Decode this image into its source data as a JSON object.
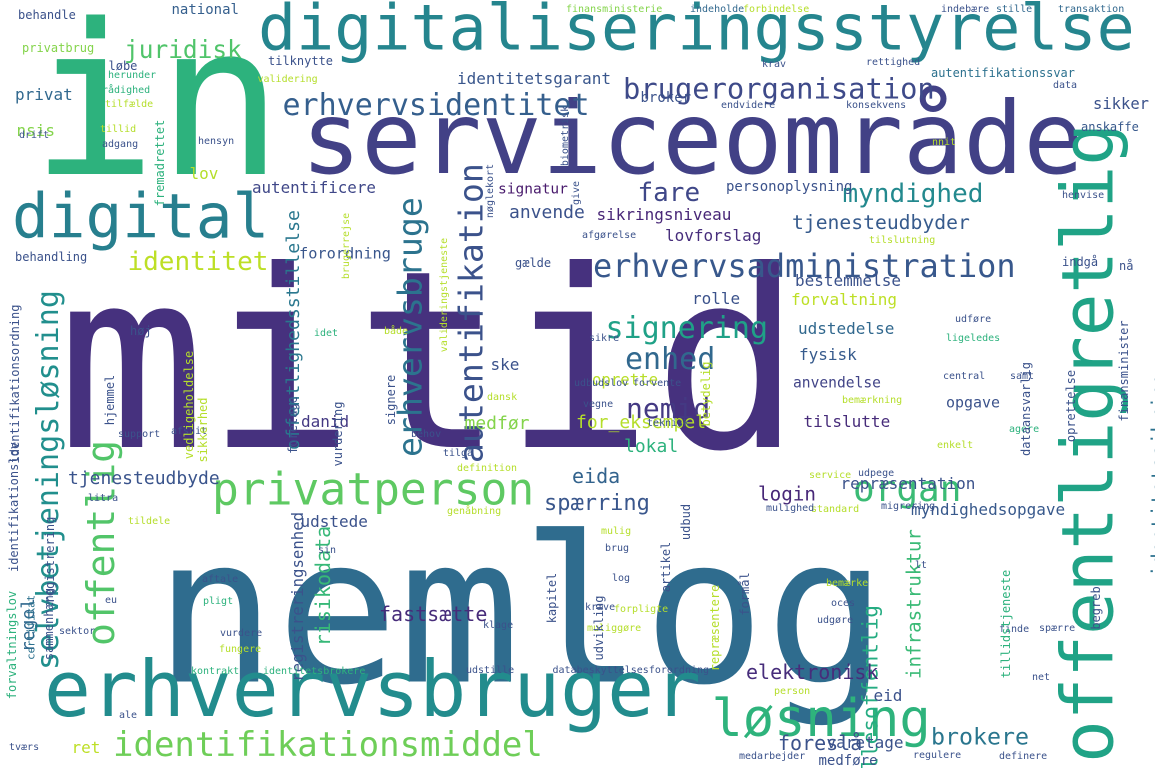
{
  "words": [
    {
      "t": "mitid",
      "c": "#46317e"
    },
    {
      "t": "nemlog",
      "c": "#2f6c8e"
    },
    {
      "t": "in",
      "c": "#2db27d"
    },
    {
      "t": "serviceområde",
      "c": "#424186"
    },
    {
      "t": "digitaliseringsstyrelse",
      "c": "#25858e"
    },
    {
      "t": "erhvervsbruger",
      "c": "#228c8d"
    },
    {
      "t": "offentligretlig",
      "c": "#20a386"
    },
    {
      "t": "digital",
      "c": "#277f8e"
    },
    {
      "t": "løsning",
      "c": "#2eb37c"
    },
    {
      "t": "privatperson",
      "c": "#5ec962"
    },
    {
      "t": "identifikationsmiddel",
      "c": "#6ece58"
    },
    {
      "t": "erhvervsadministration",
      "c": "#38588c"
    },
    {
      "t": "brugerorganisation",
      "c": "#3e4a89"
    },
    {
      "t": "selvbetjeningsløsning",
      "c": "#218f8d"
    },
    {
      "t": "autentifikation",
      "c": "#3b528b"
    },
    {
      "t": "organ",
      "c": "#3bbb75"
    },
    {
      "t": "offentlig",
      "c": "#52c569"
    },
    {
      "t": "erhvervsbruge",
      "c": "#2c738e"
    },
    {
      "t": "signering",
      "c": "#1fa187"
    },
    {
      "t": "erhvervsidentitet",
      "c": "#355f8d"
    },
    {
      "t": "juridisk",
      "c": "#50c46a"
    },
    {
      "t": "identitet",
      "c": "#bddf26"
    },
    {
      "t": "enhed",
      "c": "#31688e"
    },
    {
      "t": "nemid",
      "c": "#443983"
    },
    {
      "t": "fare",
      "c": "#3f4788"
    },
    {
      "t": "myndighed",
      "c": "#23898e"
    },
    {
      "t": "brokere",
      "c": "#2a768e"
    },
    {
      "t": "offentlighedsstillelse",
      "c": "#2a778e"
    },
    {
      "t": "tjenesteudbyder",
      "c": "#375b8d"
    },
    {
      "t": "identitetssikring",
      "c": "#2c718e"
    },
    {
      "t": "infrastruktur",
      "c": "#3aba76"
    },
    {
      "t": "fællesoffentlig",
      "c": "#25ac82"
    },
    {
      "t": "registreringsenhed",
      "c": "#3b528b"
    },
    {
      "t": "risikodata",
      "c": "#37b878"
    },
    {
      "t": "spærring",
      "c": "#39568c"
    },
    {
      "t": "eida",
      "c": "#33638d"
    },
    {
      "t": "login",
      "c": "#482878"
    },
    {
      "t": "elektronisk",
      "c": "#472d7b"
    },
    {
      "t": "foreslå",
      "c": "#3b528b"
    },
    {
      "t": "fastsætte",
      "c": "#472c7a"
    },
    {
      "t": "identitetsgarant",
      "c": "#39568c"
    },
    {
      "t": "autentifikationssvar",
      "c": "#2c718e"
    },
    {
      "t": "anvende",
      "c": "#3b528b"
    },
    {
      "t": "sikringsniveau",
      "c": "#482677"
    },
    {
      "t": "lovforslag",
      "c": "#472e7c"
    },
    {
      "t": "forordning",
      "c": "#39568c"
    },
    {
      "t": "autentificere",
      "c": "#3f4788"
    },
    {
      "t": "personoplysning",
      "c": "#3b528b"
    },
    {
      "t": "signatur",
      "c": "#481a6c"
    },
    {
      "t": "tjenesteudbyde",
      "c": "#3a548c"
    },
    {
      "t": "medfør",
      "c": "#84d44b"
    },
    {
      "t": "lokal",
      "c": "#2db27d"
    },
    {
      "t": "for_eksempel",
      "c": "#b5de2b"
    },
    {
      "t": "oprette",
      "c": "#b8de29"
    },
    {
      "t": "bestemmelse",
      "c": "#3b528b"
    },
    {
      "t": "forvaltning",
      "c": "#bddf26"
    },
    {
      "t": "udstedelse",
      "c": "#31688e"
    },
    {
      "t": "fysisk",
      "c": "#375b8d"
    },
    {
      "t": "anvendelse",
      "c": "#414487"
    },
    {
      "t": "opgave",
      "c": "#3b528b"
    },
    {
      "t": "tilslutte",
      "c": "#472c7a"
    },
    {
      "t": "repræsentation",
      "c": "#3b528b"
    },
    {
      "t": "myndighedsopgave",
      "c": "#38598c"
    },
    {
      "t": "udstede",
      "c": "#3b528b"
    },
    {
      "t": "varetage",
      "c": "#3b528b"
    },
    {
      "t": "eid",
      "c": "#3b528b"
    },
    {
      "t": "medføre",
      "c": "#3b528b"
    },
    {
      "t": "rolle",
      "c": "#3b528b"
    },
    {
      "t": "danid",
      "c": "#443983"
    },
    {
      "t": "ske",
      "c": "#3b528b"
    },
    {
      "t": "regel",
      "c": "#31688e"
    },
    {
      "t": "certifikat",
      "c": "#2c718e"
    },
    {
      "t": "ret",
      "c": "#bddf26"
    },
    {
      "t": "privat",
      "c": "#31688e"
    },
    {
      "t": "nsis",
      "c": "#84d44b"
    },
    {
      "t": "lov",
      "c": "#b5de2b"
    },
    {
      "t": "broker",
      "c": "#3b528b"
    },
    {
      "t": "sikker",
      "c": "#3b528b"
    },
    {
      "t": "anskaffe",
      "c": "#38598c"
    },
    {
      "t": "national",
      "c": "#355f8d"
    },
    {
      "t": "behandle",
      "c": "#3b528b"
    },
    {
      "t": "privatbrug",
      "c": "#84d44b"
    },
    {
      "t": "løbe",
      "c": "#3b528b"
    },
    {
      "t": "tilknytte",
      "c": "#3b528b"
    },
    {
      "t": "validering",
      "c": "#b5de2b"
    },
    {
      "t": "krav",
      "c": "#3b528b"
    },
    {
      "t": "rettighed",
      "c": "#3b528b"
    },
    {
      "t": "finansministerie",
      "c": "#84d44b"
    },
    {
      "t": "indeholde",
      "c": "#31688e"
    },
    {
      "t": "forbindelse",
      "c": "#b5de2b"
    },
    {
      "t": "indebære",
      "c": "#3b528b"
    },
    {
      "t": "stille",
      "c": "#31688e"
    },
    {
      "t": "transaktion",
      "c": "#31688e"
    },
    {
      "t": "herunder",
      "c": "#2db27d"
    },
    {
      "t": "rådighed",
      "c": "#2db27d"
    },
    {
      "t": "tilfælde",
      "c": "#b5de2b"
    },
    {
      "t": "tillid",
      "c": "#b5de2b"
    },
    {
      "t": "adgang",
      "c": "#3b528b"
    },
    {
      "t": "drift",
      "c": "#3b528b"
    },
    {
      "t": "hensyn",
      "c": "#3b528b"
    },
    {
      "t": "endvidere",
      "c": "#3b528b"
    },
    {
      "t": "konsekvens",
      "c": "#3b528b"
    },
    {
      "t": "data",
      "c": "#3b528b"
    },
    {
      "t": "nnit",
      "c": "#b5de2b"
    },
    {
      "t": "henvise",
      "c": "#3b528b"
    },
    {
      "t": "tilslutning",
      "c": "#b5de2b"
    },
    {
      "t": "behandling",
      "c": "#3b528b"
    },
    {
      "t": "gælde",
      "c": "#3b528b"
    },
    {
      "t": "afgørelse",
      "c": "#3b528b"
    },
    {
      "t": "indgå",
      "c": "#3b528b"
    },
    {
      "t": "nå",
      "c": "#3b528b"
    },
    {
      "t": "høj",
      "c": "#3b528b"
    },
    {
      "t": "idet",
      "c": "#2db27d"
    },
    {
      "t": "både",
      "c": "#b5de2b"
    },
    {
      "t": "sikre",
      "c": "#3b528b"
    },
    {
      "t": "udføre",
      "c": "#3b528b"
    },
    {
      "t": "ligeledes",
      "c": "#2db27d"
    },
    {
      "t": "samt",
      "c": "#3b528b"
    },
    {
      "t": "central",
      "c": "#3b528b"
    },
    {
      "t": "forvente",
      "c": "#3b528b"
    },
    {
      "t": "udbudslov",
      "c": "#3b528b"
    },
    {
      "t": "dansk",
      "c": "#b5de2b"
    },
    {
      "t": "vegne",
      "c": "#3b528b"
    },
    {
      "t": "bemærkning",
      "c": "#b5de2b"
    },
    {
      "t": "support",
      "c": "#3b528b"
    },
    {
      "t": "afsnit",
      "c": "#3b528b"
    },
    {
      "t": "teknisk",
      "c": "#3b528b"
    },
    {
      "t": "agere",
      "c": "#2db27d"
    },
    {
      "t": "enkelt",
      "c": "#b5de2b"
    },
    {
      "t": "behov",
      "c": "#3b528b"
    },
    {
      "t": "tilgå",
      "c": "#3b528b"
    },
    {
      "t": "definition",
      "c": "#b5de2b"
    },
    {
      "t": "service",
      "c": "#b5de2b"
    },
    {
      "t": "udpege",
      "c": "#3b528b"
    },
    {
      "t": "litra",
      "c": "#3b528b"
    },
    {
      "t": "tildele",
      "c": "#b5de2b"
    },
    {
      "t": "genåbning",
      "c": "#b5de2b"
    },
    {
      "t": "standard",
      "c": "#b5de2b"
    },
    {
      "t": "migrering",
      "c": "#3b528b"
    },
    {
      "t": "mulighed",
      "c": "#3b528b"
    },
    {
      "t": "mulig",
      "c": "#b5de2b"
    },
    {
      "t": "brug",
      "c": "#3b528b"
    },
    {
      "t": "sin",
      "c": "#3b528b"
    },
    {
      "t": "aftale",
      "c": "#3b528b"
    },
    {
      "t": "pligt",
      "c": "#2db27d"
    },
    {
      "t": "log",
      "c": "#3b528b"
    },
    {
      "t": "bemærke",
      "c": "#b5de2b"
    },
    {
      "t": "oces",
      "c": "#3b528b"
    },
    {
      "t": "udgøre",
      "c": "#3b528b"
    },
    {
      "t": "kræve",
      "c": "#3b528b"
    },
    {
      "t": "forpligte",
      "c": "#b5de2b"
    },
    {
      "t": "muliggøre",
      "c": "#b5de2b"
    },
    {
      "t": "vurdere",
      "c": "#3b528b"
    },
    {
      "t": "fungere",
      "c": "#b5de2b"
    },
    {
      "t": "kontrakt",
      "c": "#2db27d"
    },
    {
      "t": "identitetsbrokere",
      "c": "#2db27d"
    },
    {
      "t": "udstille",
      "c": "#3b528b"
    },
    {
      "t": "databeskyttelsesforordning",
      "c": "#3b528b"
    },
    {
      "t": "person",
      "c": "#b5de2b"
    },
    {
      "t": "finde",
      "c": "#3b528b"
    },
    {
      "t": "spærre",
      "c": "#3b528b"
    },
    {
      "t": "net",
      "c": "#3b528b"
    },
    {
      "t": "ale",
      "c": "#3b528b"
    },
    {
      "t": "tværs",
      "c": "#3b528b"
    },
    {
      "t": "medarbejder",
      "c": "#3b528b"
    },
    {
      "t": "regulere",
      "c": "#3b528b"
    },
    {
      "t": "definere",
      "c": "#3b528b"
    },
    {
      "t": "sektor",
      "c": "#3b528b"
    },
    {
      "t": "eu",
      "c": "#3b528b"
    },
    {
      "t": "klage",
      "c": "#3b528b"
    },
    {
      "t": "lt",
      "c": "#3b528b"
    }
  ],
  "vwords": [
    {
      "t": "biometrisk",
      "c": "#3b528b"
    },
    {
      "t": "fremadrettet",
      "c": "#2db27d"
    },
    {
      "t": "nøglekort",
      "c": "#3b528b"
    },
    {
      "t": "give",
      "c": "#3b528b"
    },
    {
      "t": "brugerrejse",
      "c": "#b5de2b"
    },
    {
      "t": "valideringstjeneste",
      "c": "#b5de2b"
    },
    {
      "t": "identifikationsordning",
      "c": "#3b528b"
    },
    {
      "t": "hjemmel",
      "c": "#3b528b"
    },
    {
      "t": "identifikationslov",
      "c": "#3b528b"
    },
    {
      "t": "forvaltningslov",
      "c": "#2db27d"
    },
    {
      "t": "sammenhæng",
      "c": "#3b528b"
    },
    {
      "t": "registrering",
      "c": "#3b528b"
    },
    {
      "t": "vedligeholdelse",
      "c": "#b5de2b"
    },
    {
      "t": "sikkerhed",
      "c": "#b5de2b"
    },
    {
      "t": "foretage",
      "c": "#3b528b"
    },
    {
      "t": "vurdering",
      "c": "#3b528b"
    },
    {
      "t": "signere",
      "c": "#3b528b"
    },
    {
      "t": "betydelig",
      "c": "#b5de2b"
    },
    {
      "t": "udbud",
      "c": "#3b528b"
    },
    {
      "t": "artikel",
      "c": "#3b528b"
    },
    {
      "t": "udvikling",
      "c": "#3b528b"
    },
    {
      "t": "kapitel",
      "c": "#3b528b"
    },
    {
      "t": "repræsentere",
      "c": "#b5de2b"
    },
    {
      "t": "formål",
      "c": "#3b528b"
    },
    {
      "t": "tillidstjeneste",
      "c": "#2db27d"
    },
    {
      "t": "begreb",
      "c": "#3b528b"
    },
    {
      "t": "oprettelse",
      "c": "#3b528b"
    },
    {
      "t": "dataansvarlig",
      "c": "#3b528b"
    },
    {
      "t": "finansminister",
      "c": "#3b528b"
    }
  ]
}
